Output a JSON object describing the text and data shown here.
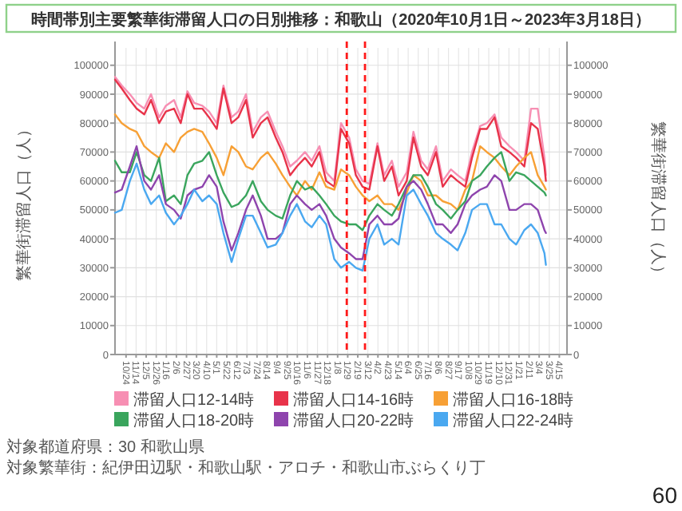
{
  "chart_data": {
    "type": "line",
    "title": "時間帯別主要繁華街滞留人口の日別推移：和歌山（2020年10月1日～2023年3月18日）",
    "ylabel": "繁華街滞留人口（人）",
    "y2label": "繁華街滞留人口（人）",
    "x": [
      "2020-10-01",
      "2020-10-15",
      "2020-11-01",
      "2020-11-15",
      "2020-12-01",
      "2020-12-15",
      "2021-01-01",
      "2021-01-15",
      "2021-02-01",
      "2021-02-15",
      "2021-03-01",
      "2021-03-15",
      "2021-04-01",
      "2021-04-15",
      "2021-05-01",
      "2021-05-15",
      "2021-06-01",
      "2021-06-15",
      "2021-07-01",
      "2021-07-15",
      "2021-08-01",
      "2021-08-15",
      "2021-09-01",
      "2021-09-15",
      "2021-10-01",
      "2021-10-15",
      "2021-11-01",
      "2021-11-15",
      "2021-12-01",
      "2021-12-15",
      "2022-01-01",
      "2022-01-15",
      "2022-02-01",
      "2022-02-15",
      "2022-03-01",
      "2022-03-15",
      "2022-04-01",
      "2022-04-15",
      "2022-05-01",
      "2022-05-15",
      "2022-06-01",
      "2022-06-15",
      "2022-07-01",
      "2022-07-15",
      "2022-08-01",
      "2022-08-15",
      "2022-09-01",
      "2022-09-15",
      "2022-10-01",
      "2022-10-15",
      "2022-11-01",
      "2022-11-15",
      "2022-12-01",
      "2022-12-15",
      "2023-01-01",
      "2023-01-15",
      "2023-02-01",
      "2023-02-15",
      "2023-03-01",
      "2023-03-15",
      "2023-03-18"
    ],
    "series": [
      {
        "name": "滞留人口12-14時",
        "color": "#f78fb3",
        "values": [
          96000,
          93000,
          90000,
          87000,
          85000,
          90000,
          82000,
          86000,
          88000,
          82000,
          91000,
          87000,
          86000,
          84000,
          80000,
          93000,
          82000,
          84000,
          90000,
          77000,
          82000,
          84000,
          77000,
          72000,
          65000,
          67000,
          70000,
          67000,
          72000,
          63000,
          60000,
          80000,
          75000,
          64000,
          60000,
          59000,
          73000,
          62000,
          67000,
          58000,
          63000,
          77000,
          67000,
          64000,
          72000,
          60000,
          64000,
          62000,
          60000,
          70000,
          79000,
          80000,
          83000,
          75000,
          72000,
          70000,
          67000,
          85000,
          85000,
          68000,
          62000
        ]
      },
      {
        "name": "滞留人口14-16時",
        "color": "#e8334a",
        "values": [
          95000,
          92000,
          88000,
          85000,
          83000,
          88000,
          80000,
          84000,
          85000,
          80000,
          90000,
          85000,
          85000,
          82000,
          78000,
          92000,
          80000,
          82000,
          88000,
          75000,
          80000,
          82000,
          75000,
          70000,
          62000,
          65000,
          68000,
          65000,
          70000,
          60000,
          58000,
          78000,
          73000,
          62000,
          58000,
          57000,
          72000,
          60000,
          65000,
          55000,
          60000,
          75000,
          65000,
          62000,
          70000,
          58000,
          62000,
          60000,
          58000,
          68000,
          78000,
          78000,
          82000,
          72000,
          70000,
          68000,
          65000,
          80000,
          78000,
          65000,
          60000
        ]
      },
      {
        "name": "滞留人口16-18時",
        "color": "#f7a035",
        "values": [
          83000,
          80000,
          78000,
          77000,
          72000,
          70000,
          68000,
          73000,
          70000,
          75000,
          77000,
          78000,
          77000,
          73000,
          68000,
          62000,
          72000,
          70000,
          65000,
          64000,
          68000,
          70000,
          66000,
          62000,
          58000,
          55000,
          60000,
          57000,
          63000,
          58000,
          57000,
          64000,
          62000,
          58000,
          55000,
          53000,
          55000,
          52000,
          52000,
          50000,
          56000,
          62000,
          60000,
          55000,
          55000,
          53000,
          52000,
          50000,
          57000,
          60000,
          72000,
          70000,
          68000,
          65000,
          62000,
          65000,
          68000,
          70000,
          62000,
          58000,
          57000
        ]
      },
      {
        "name": "滞留人口18-20時",
        "color": "#3aa55d",
        "values": [
          67000,
          63000,
          63000,
          70000,
          62000,
          60000,
          68000,
          53000,
          55000,
          52000,
          62000,
          66000,
          67000,
          70000,
          62000,
          56000,
          51000,
          52000,
          55000,
          60000,
          53000,
          50000,
          48000,
          47000,
          55000,
          60000,
          57000,
          58000,
          55000,
          52000,
          48000,
          46000,
          45000,
          45000,
          43000,
          48000,
          52000,
          50000,
          48000,
          52000,
          58000,
          62000,
          62000,
          58000,
          52000,
          50000,
          47000,
          50000,
          53000,
          60000,
          62000,
          65000,
          68000,
          70000,
          60000,
          63000,
          62000,
          60000,
          58000,
          56000,
          55000
        ]
      },
      {
        "name": "滞留人口20-22時",
        "color": "#8e44ad",
        "values": [
          56000,
          57000,
          65000,
          72000,
          60000,
          57000,
          62000,
          52000,
          50000,
          47000,
          55000,
          57000,
          58000,
          62000,
          58000,
          46000,
          36000,
          42000,
          50000,
          55000,
          48000,
          40000,
          40000,
          42000,
          52000,
          55000,
          52000,
          50000,
          52000,
          48000,
          40000,
          37000,
          35000,
          33000,
          33000,
          45000,
          48000,
          45000,
          45000,
          47000,
          58000,
          60000,
          57000,
          52000,
          45000,
          45000,
          42000,
          45000,
          52000,
          55000,
          57000,
          58000,
          62000,
          60000,
          50000,
          50000,
          52000,
          52000,
          50000,
          43000,
          42000
        ]
      },
      {
        "name": "滞留人口22-24時",
        "color": "#4aa8f0",
        "values": [
          49000,
          50000,
          60000,
          66000,
          57000,
          52000,
          55000,
          49000,
          45000,
          48000,
          52000,
          57000,
          53000,
          55000,
          52000,
          42000,
          32000,
          40000,
          48000,
          48000,
          42000,
          37000,
          38000,
          42000,
          48000,
          52000,
          46000,
          44000,
          48000,
          45000,
          33000,
          30000,
          32000,
          30000,
          29000,
          40000,
          45000,
          38000,
          40000,
          38000,
          55000,
          57000,
          52000,
          48000,
          42000,
          40000,
          38000,
          36000,
          42000,
          50000,
          52000,
          52000,
          45000,
          45000,
          40000,
          38000,
          43000,
          45000,
          42000,
          35000,
          31000
        ]
      }
    ],
    "xlim": [
      "2020-10-01",
      "2023-05-01"
    ],
    "xticks": [
      {
        "value": "2020-10-24",
        "label": "10/24"
      },
      {
        "value": "2020-11-14",
        "label": "11/14"
      },
      {
        "value": "2020-12-05",
        "label": "12/5"
      },
      {
        "value": "2020-12-26",
        "label": "12/26"
      },
      {
        "value": "2021-01-16",
        "label": "1/16"
      },
      {
        "value": "2021-02-06",
        "label": "2/6"
      },
      {
        "value": "2021-02-27",
        "label": "2/27"
      },
      {
        "value": "2021-03-20",
        "label": "3/20"
      },
      {
        "value": "2021-04-10",
        "label": "4/10"
      },
      {
        "value": "2021-05-01",
        "label": "5/1"
      },
      {
        "value": "2021-05-22",
        "label": "5/22"
      },
      {
        "value": "2021-06-12",
        "label": "6/12"
      },
      {
        "value": "2021-07-03",
        "label": "7/3"
      },
      {
        "value": "2021-07-24",
        "label": "7/24"
      },
      {
        "value": "2021-08-14",
        "label": "8/14"
      },
      {
        "value": "2021-09-04",
        "label": "9/4"
      },
      {
        "value": "2021-09-25",
        "label": "9/25"
      },
      {
        "value": "2021-10-16",
        "label": "10/16"
      },
      {
        "value": "2021-11-06",
        "label": "11/6"
      },
      {
        "value": "2021-11-27",
        "label": "11/27"
      },
      {
        "value": "2021-12-18",
        "label": "12/18"
      },
      {
        "value": "2022-01-08",
        "label": "1/8"
      },
      {
        "value": "2022-01-29",
        "label": "1/29"
      },
      {
        "value": "2022-02-19",
        "label": "2/19"
      },
      {
        "value": "2022-03-12",
        "label": "3/12"
      },
      {
        "value": "2022-04-02",
        "label": "4/2"
      },
      {
        "value": "2022-04-23",
        "label": "4/23"
      },
      {
        "value": "2022-05-14",
        "label": "5/14"
      },
      {
        "value": "2022-06-04",
        "label": "6/4"
      },
      {
        "value": "2022-06-25",
        "label": "6/25"
      },
      {
        "value": "2022-07-16",
        "label": "7/16"
      },
      {
        "value": "2022-08-06",
        "label": "8/6"
      },
      {
        "value": "2022-08-27",
        "label": "8/27"
      },
      {
        "value": "2022-09-17",
        "label": "9/17"
      },
      {
        "value": "2022-10-08",
        "label": "10/8"
      },
      {
        "value": "2022-10-29",
        "label": "10/29"
      },
      {
        "value": "2022-11-19",
        "label": "11/19"
      },
      {
        "value": "2022-12-10",
        "label": "12/10"
      },
      {
        "value": "2022-12-31",
        "label": "12/31"
      },
      {
        "value": "2023-01-21",
        "label": "1/21"
      },
      {
        "value": "2023-02-11",
        "label": "2/11"
      },
      {
        "value": "2023-03-04",
        "label": "3/4"
      },
      {
        "value": "2023-03-25",
        "label": "3/25"
      },
      {
        "value": "2023-04-15",
        "label": "4/15"
      }
    ],
    "ylim": [
      0,
      106000
    ],
    "yticks": [
      0,
      10000,
      20000,
      30000,
      40000,
      50000,
      60000,
      70000,
      80000,
      90000,
      100000
    ],
    "y2lim": [
      0,
      106000
    ],
    "y2ticks": [
      0,
      10000,
      20000,
      30000,
      40000,
      50000,
      60000,
      70000,
      80000,
      90000,
      100000
    ],
    "ref_lines": [
      {
        "axis": "x",
        "value": "2022-01-27",
        "color": "#ff1a1a",
        "line_style": "dashed"
      },
      {
        "axis": "x",
        "value": "2022-03-06",
        "color": "#ff1a1a",
        "line_style": "dashed"
      }
    ],
    "grid": true,
    "legend": "bottom",
    "annotations": [
      "対象都道府県：30 和歌山県",
      "対象繁華街：紀伊田辺駅・和歌山駅・アロチ・和歌山市ぶらくり丁",
      "60"
    ]
  }
}
